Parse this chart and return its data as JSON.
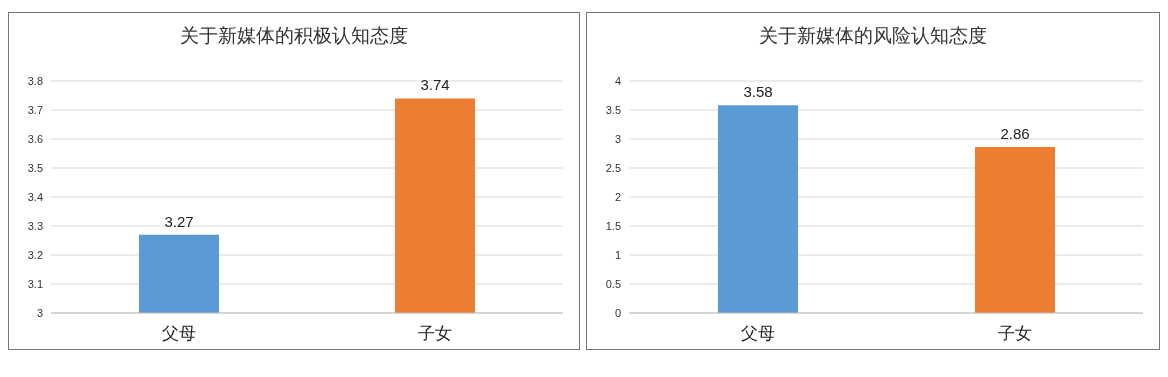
{
  "chart_data": [
    {
      "type": "bar",
      "title": "关于新媒体的积极认知态度",
      "categories": [
        "父母",
        "子女"
      ],
      "values": [
        3.27,
        3.74
      ],
      "colors": [
        "#5b9bd5",
        "#ed7d31"
      ],
      "ylim": [
        3,
        3.8
      ],
      "yticks": [
        3,
        3.1,
        3.2,
        3.3,
        3.4,
        3.5,
        3.6,
        3.7,
        3.8
      ],
      "grid": "y",
      "data_labels": true,
      "legend": false
    },
    {
      "type": "bar",
      "title": "关于新媒体的风险认知态度",
      "categories": [
        "父母",
        "子女"
      ],
      "values": [
        3.58,
        2.86
      ],
      "colors": [
        "#5b9bd5",
        "#ed7d31"
      ],
      "ylim": [
        0,
        4
      ],
      "yticks": [
        0,
        0.5,
        1,
        1.5,
        2,
        2.5,
        3,
        3.5,
        4
      ],
      "grid": "y",
      "data_labels": true,
      "legend": false
    }
  ]
}
